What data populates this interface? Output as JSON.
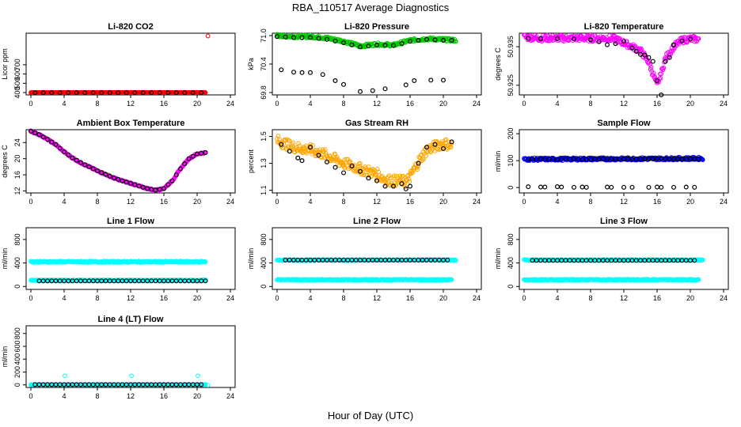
{
  "page": {
    "title": "RBA_110517  Average Diagnostics",
    "xlabel": "Hour of Day (UTC)"
  },
  "colors": {
    "red": "#ff0000",
    "green": "#00cc00",
    "magenta": "#ff00ff",
    "orange": "#ffa500",
    "blue": "#0000ff",
    "cyan": "#00ffff",
    "black": "#000000"
  },
  "chart_data": [
    {
      "type": "scatter",
      "title": "Li-820 CO2",
      "ylabel": "Licor ppm",
      "x_ticks": [
        0,
        4,
        8,
        12,
        16,
        20,
        24
      ],
      "xlim": [
        0,
        24
      ],
      "y_ticks": [
        400,
        500,
        600,
        700
      ],
      "ylim": [
        375,
        1040
      ],
      "series": [
        {
          "name": "all",
          "color": "red",
          "x": [
            0,
            21
          ],
          "y": [
            400,
            400
          ],
          "dense": true,
          "outliers": [
            [
              21.3,
              1010
            ]
          ]
        },
        {
          "name": "avg",
          "color": "black",
          "x": [
            0.5,
            20.5
          ],
          "y": [
            398,
            398
          ],
          "step": 1
        }
      ]
    },
    {
      "type": "scatter",
      "title": "Li-820 Pressure",
      "ylabel": "kPa",
      "x_ticks": [
        0,
        4,
        8,
        12,
        16,
        20,
        24
      ],
      "xlim": [
        0,
        24
      ],
      "y_ticks": [
        69.8,
        70.4,
        71.0
      ],
      "y_tick_labels": [
        "69.8",
        "70.4",
        "71.0"
      ],
      "ylim": [
        69.75,
        71.05
      ],
      "series": [
        {
          "name": "all",
          "color": "green",
          "x": [
            0,
            2,
            4,
            6,
            8,
            10,
            12,
            14,
            16,
            18,
            20,
            21.5
          ],
          "y": [
            71.0,
            70.98,
            70.98,
            70.95,
            70.88,
            70.78,
            70.82,
            70.8,
            70.9,
            70.93,
            70.92,
            70.9
          ],
          "dense": true,
          "band": 0.03
        },
        {
          "name": "avg_high",
          "color": "black",
          "x": [
            0,
            2,
            4,
            6,
            8,
            10,
            12,
            14,
            16,
            18,
            20,
            21
          ],
          "y": [
            70.98,
            70.96,
            70.96,
            70.92,
            70.85,
            70.76,
            70.8,
            70.79,
            70.88,
            70.92,
            70.9,
            70.9
          ],
          "step": 1
        },
        {
          "name": "avg_low",
          "color": "black",
          "x": [
            0.5,
            2,
            3,
            4,
            5.5,
            7,
            8,
            10,
            11.5,
            13,
            15.5,
            16.5,
            18.5,
            20
          ],
          "y": [
            70.28,
            70.23,
            70.22,
            70.22,
            70.18,
            70.05,
            69.97,
            69.82,
            69.84,
            69.88,
            69.96,
            70.05,
            70.06,
            70.06
          ]
        }
      ]
    },
    {
      "type": "scatter",
      "title": "Li-820 Temperature",
      "ylabel": "degrees C",
      "x_ticks": [
        0,
        4,
        8,
        12,
        16,
        20,
        24
      ],
      "xlim": [
        0,
        24
      ],
      "y_ticks": [
        50.925,
        50.935
      ],
      "ylim": [
        50.9225,
        50.9385
      ],
      "series": [
        {
          "name": "all",
          "color": "magenta",
          "x": [
            0,
            2,
            4,
            6,
            8,
            10,
            11,
            12,
            13,
            14,
            15,
            15.5,
            16,
            16.5,
            17,
            18,
            19,
            20,
            21
          ],
          "y": [
            50.9375,
            50.9372,
            50.9372,
            50.9372,
            50.9372,
            50.9372,
            50.937,
            50.936,
            50.935,
            50.934,
            50.931,
            50.928,
            50.925,
            50.928,
            50.932,
            50.935,
            50.9367,
            50.937,
            50.937
          ],
          "dense": true,
          "band": 0.0008
        },
        {
          "name": "avg",
          "color": "black",
          "x": [
            0.5,
            2,
            4,
            6,
            8,
            9,
            10,
            11,
            12,
            13,
            13.5,
            14,
            14.5,
            15,
            15.5,
            16,
            16.5,
            17,
            17.5,
            18,
            19,
            20
          ],
          "y": [
            50.9372,
            50.9371,
            50.9371,
            50.937,
            50.9368,
            50.9363,
            50.9355,
            50.9358,
            50.9364,
            50.9347,
            50.9338,
            50.933,
            50.9328,
            50.9322,
            50.9312,
            50.9262,
            50.9225,
            50.9312,
            50.9322,
            50.9355,
            50.9365,
            50.937
          ]
        }
      ]
    },
    {
      "type": "scatter",
      "title": "Ambient Box Temperature",
      "ylabel": "degrees C",
      "x_ticks": [
        0,
        4,
        8,
        12,
        16,
        20,
        24
      ],
      "xlim": [
        0,
        24
      ],
      "y_ticks": [
        12,
        16,
        20,
        24
      ],
      "ylim": [
        11.5,
        27.2
      ],
      "series": [
        {
          "name": "all",
          "color": "magenta",
          "x": [
            0,
            1,
            2,
            3,
            4,
            5,
            6,
            7,
            8,
            9,
            10,
            11,
            12,
            13,
            14,
            15,
            16,
            17,
            18,
            19,
            20,
            21
          ],
          "y": [
            26.8,
            26,
            24.8,
            23.5,
            21.7,
            20.2,
            19,
            18,
            17,
            16.1,
            15.2,
            14.5,
            13.9,
            13.2,
            12.6,
            12.2,
            12.6,
            14.5,
            17.5,
            20,
            21.2,
            21.5
          ],
          "dense": true,
          "band": 0.15
        },
        {
          "name": "avg",
          "color": "black",
          "x": [
            0,
            1,
            2,
            3,
            4,
            5,
            6,
            7,
            8,
            9,
            10,
            11,
            12,
            13,
            14,
            15,
            16,
            17,
            18,
            19,
            20,
            21
          ],
          "y": [
            26.8,
            26,
            24.8,
            23.5,
            21.7,
            20.2,
            19,
            18,
            17,
            16.1,
            15.2,
            14.5,
            13.9,
            13.2,
            12.6,
            12.2,
            12.6,
            14.5,
            17.5,
            20,
            21.2,
            21.5
          ],
          "step": 0.5
        }
      ]
    },
    {
      "type": "scatter",
      "title": "Gas Stream RH",
      "ylabel": "percent",
      "x_ticks": [
        0,
        4,
        8,
        12,
        16,
        20,
        24
      ],
      "xlim": [
        0,
        24
      ],
      "y_ticks": [
        1.1,
        1.3,
        1.5
      ],
      "ylim": [
        1.08,
        1.55
      ],
      "series": [
        {
          "name": "all",
          "color": "orange",
          "x": [
            0,
            2,
            4,
            6,
            8,
            10,
            12,
            13,
            14,
            15,
            15.5,
            16,
            17,
            18,
            20,
            21
          ],
          "y": [
            1.47,
            1.42,
            1.4,
            1.36,
            1.3,
            1.26,
            1.22,
            1.18,
            1.17,
            1.17,
            1.16,
            1.2,
            1.31,
            1.4,
            1.45,
            1.43
          ],
          "dense": true,
          "band": 0.04
        },
        {
          "name": "avg",
          "color": "black",
          "x": [
            0.5,
            1.5,
            2.5,
            3,
            4,
            5,
            6,
            7,
            8,
            9,
            10,
            11,
            12,
            13,
            14,
            15,
            15.5,
            16,
            17,
            18,
            19,
            20,
            21
          ],
          "y": [
            1.44,
            1.39,
            1.34,
            1.32,
            1.42,
            1.36,
            1.31,
            1.27,
            1.23,
            1.28,
            1.24,
            1.19,
            1.17,
            1.13,
            1.13,
            1.15,
            1.11,
            1.13,
            1.3,
            1.42,
            1.44,
            1.41,
            1.46
          ]
        }
      ]
    },
    {
      "type": "scatter",
      "title": "Sample Flow",
      "ylabel": "ml/min",
      "x_ticks": [
        0,
        4,
        8,
        12,
        16,
        20,
        24
      ],
      "xlim": [
        0,
        24
      ],
      "y_ticks": [
        0,
        100,
        200
      ],
      "ylim": [
        -20,
        215
      ],
      "series": [
        {
          "name": "all",
          "color": "blue",
          "x": [
            0,
            21.5
          ],
          "y": [
            105,
            108
          ],
          "dense": true,
          "band": 5
        },
        {
          "name": "avg_high",
          "color": "black",
          "x": [
            0.5,
            21
          ],
          "y": [
            105,
            107
          ],
          "step": 0.5
        },
        {
          "name": "avg_low",
          "color": "black",
          "x": [
            0.5,
            2,
            2.5,
            4,
            4.5,
            6,
            7,
            7.5,
            10,
            10.5,
            12,
            13,
            15,
            16,
            16.5,
            18,
            19.5,
            20.5
          ],
          "y": [
            3,
            2,
            2,
            3,
            2,
            1,
            2,
            1,
            2,
            1,
            1,
            1,
            1,
            2,
            1,
            1,
            2,
            1
          ]
        }
      ]
    },
    {
      "type": "scatter",
      "title": "Line 1 Flow",
      "ylabel": "ml/min",
      "x_ticks": [
        0,
        4,
        8,
        12,
        16,
        20,
        24
      ],
      "xlim": [
        0,
        24
      ],
      "y_ticks": [
        0,
        400,
        800
      ],
      "ylim": [
        -50,
        1000
      ],
      "series": [
        {
          "name": "all_high",
          "color": "cyan",
          "x": [
            0,
            21
          ],
          "y": [
            420,
            420
          ],
          "dense": true,
          "band": 12
        },
        {
          "name": "all_low",
          "color": "cyan",
          "x": [
            0,
            21
          ],
          "y": [
            105,
            105
          ],
          "dense": true,
          "band": 8
        },
        {
          "name": "avg",
          "color": "black",
          "x": [
            1,
            21
          ],
          "y": [
            95,
            95
          ],
          "step": 0.5
        }
      ]
    },
    {
      "type": "scatter",
      "title": "Line 2 Flow",
      "ylabel": "ml/min",
      "x_ticks": [
        0,
        4,
        8,
        12,
        16,
        20,
        24
      ],
      "xlim": [
        0,
        24
      ],
      "y_ticks": [
        0,
        400,
        800
      ],
      "ylim": [
        -50,
        1000
      ],
      "series": [
        {
          "name": "all_high",
          "color": "cyan",
          "x": [
            0,
            21.5
          ],
          "y": [
            450,
            450
          ],
          "dense": true,
          "band": 10
        },
        {
          "name": "all_low",
          "color": "cyan",
          "x": [
            0,
            21
          ],
          "y": [
            115,
            115
          ],
          "dense": true,
          "band": 8
        },
        {
          "name": "avg",
          "color": "black",
          "x": [
            1,
            20.5
          ],
          "y": [
            450,
            450
          ],
          "step": 0.5
        }
      ]
    },
    {
      "type": "scatter",
      "title": "Line 3 Flow",
      "ylabel": "ml/min",
      "x_ticks": [
        0,
        4,
        8,
        12,
        16,
        20,
        24
      ],
      "xlim": [
        0,
        24
      ],
      "y_ticks": [
        0,
        400,
        800
      ],
      "ylim": [
        -50,
        1000
      ],
      "series": [
        {
          "name": "all_high",
          "color": "cyan",
          "x": [
            0,
            21.5
          ],
          "y": [
            450,
            450
          ],
          "dense": true,
          "band": 10
        },
        {
          "name": "all_low",
          "color": "cyan",
          "x": [
            0,
            21
          ],
          "y": [
            115,
            115
          ],
          "dense": true,
          "band": 8
        },
        {
          "name": "avg",
          "color": "black",
          "x": [
            1,
            20.5
          ],
          "y": [
            445,
            445
          ],
          "step": 0.5
        }
      ]
    },
    {
      "type": "scatter",
      "title": "Line 4 (LT) Flow",
      "ylabel": "ml/min",
      "x_ticks": [
        0,
        4,
        8,
        12,
        16,
        20,
        24
      ],
      "xlim": [
        0,
        24
      ],
      "y_ticks": [
        0,
        200,
        400,
        600,
        800
      ],
      "ylim": [
        -40,
        920
      ],
      "series": [
        {
          "name": "all",
          "color": "cyan",
          "x": [
            0,
            21
          ],
          "y": [
            5,
            5
          ],
          "dense": true,
          "band": 3,
          "outliers": [
            [
              4.1,
              140
            ],
            [
              12.1,
              140
            ],
            [
              20.1,
              140
            ],
            [
              21.3,
              -5
            ]
          ]
        },
        {
          "name": "avg",
          "color": "black",
          "x": [
            0.5,
            20.5
          ],
          "y": [
            5,
            5
          ],
          "step": 0.5
        }
      ]
    }
  ]
}
